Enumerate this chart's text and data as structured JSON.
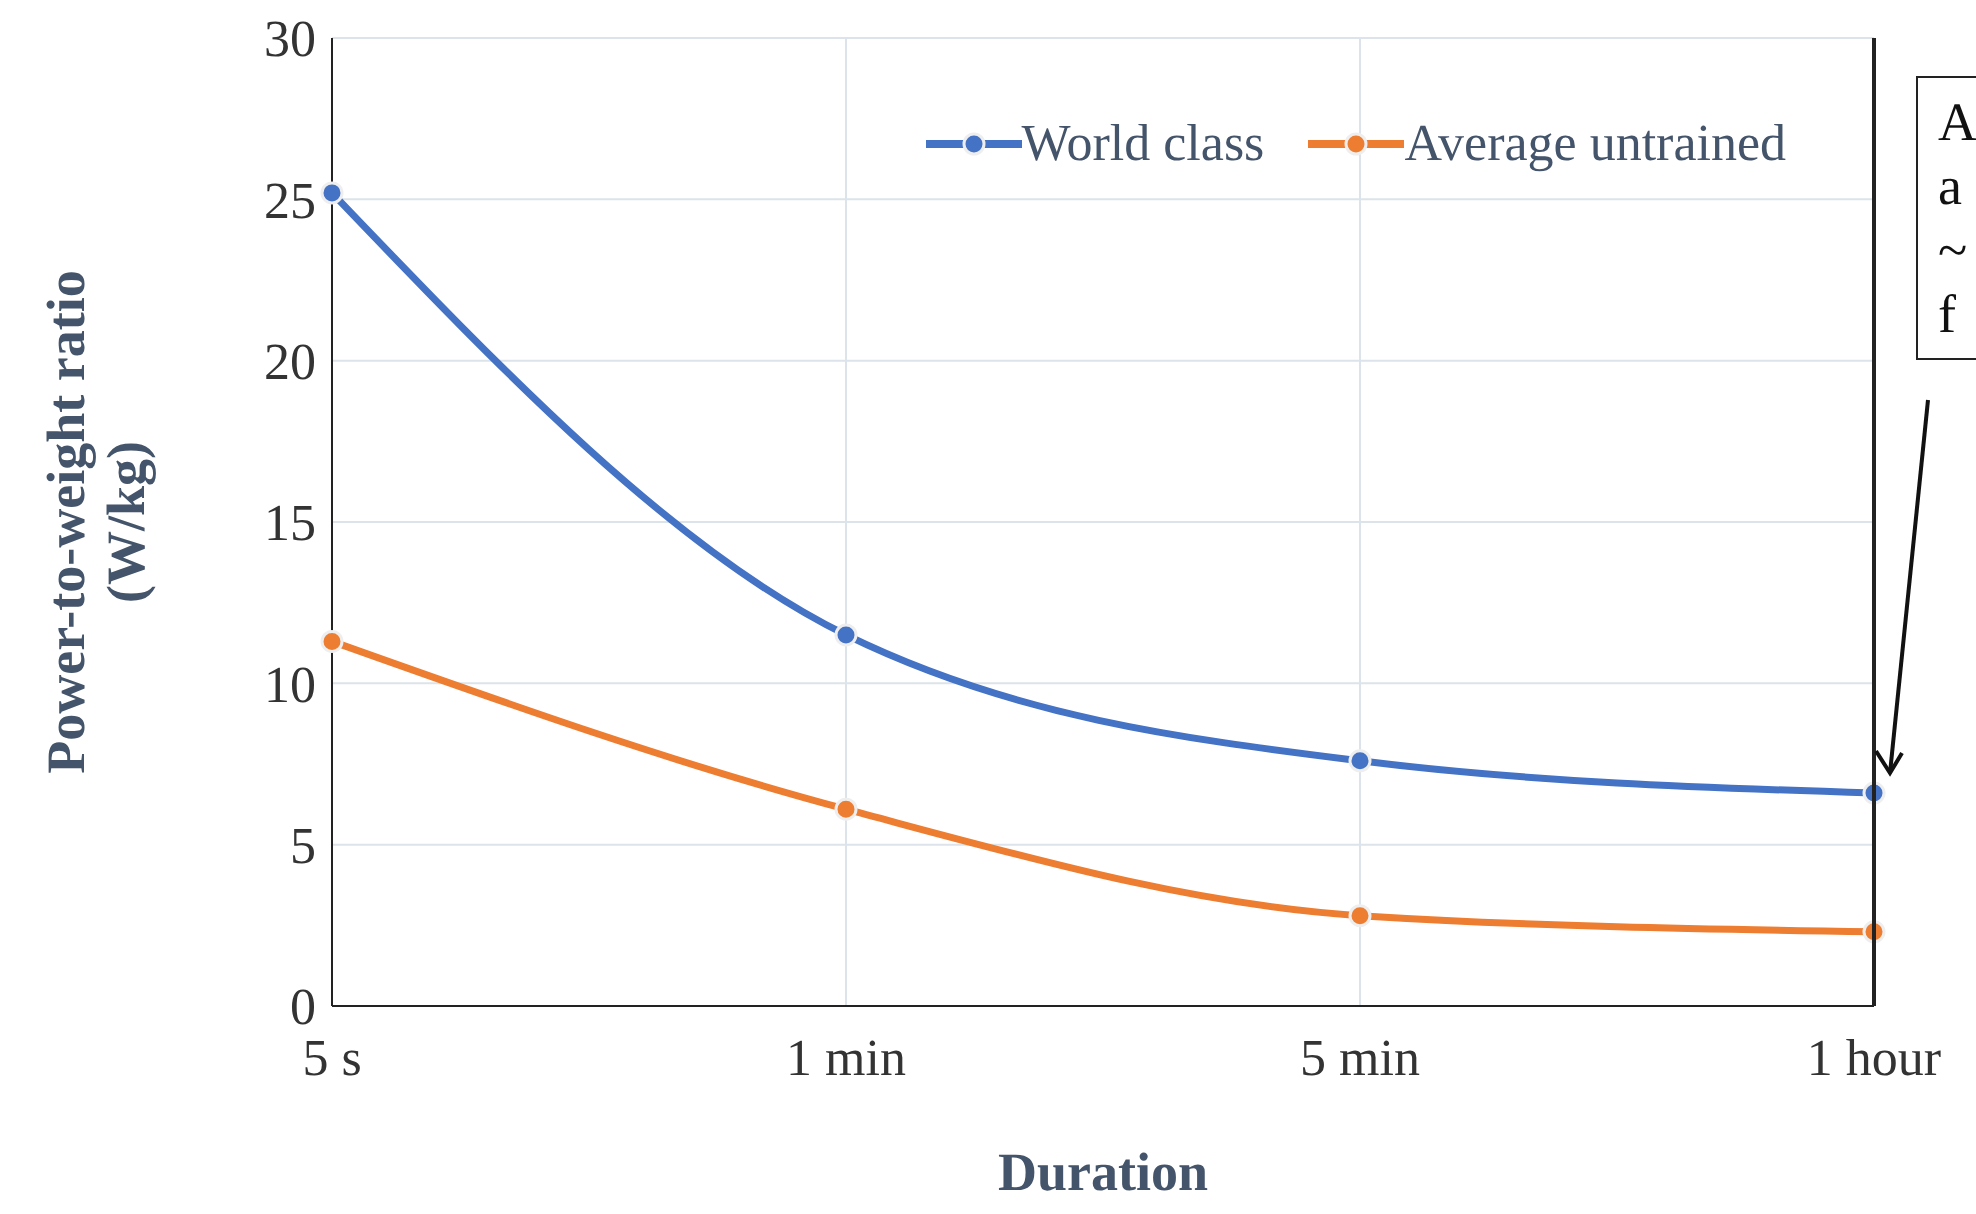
{
  "chart_data": {
    "type": "line",
    "xlabel": "Duration",
    "ylabel": "Power-to-weight ratio\n(W/kg)",
    "categories": [
      "5 s",
      "1 min",
      "5 min",
      "1 hour"
    ],
    "series": [
      {
        "name": "World class",
        "color": "#4472c4",
        "values": [
          25.2,
          11.5,
          7.6,
          6.6
        ]
      },
      {
        "name": "Average untrained",
        "color": "#ed7d31",
        "values": [
          11.3,
          6.1,
          2.8,
          2.3
        ]
      }
    ],
    "ylim": [
      0,
      30
    ],
    "yticks": [
      0,
      5,
      10,
      15,
      20,
      25,
      30
    ],
    "grid": true,
    "legend": "top right",
    "marker": "circle",
    "line_style": "solid",
    "annotations": [
      "A\na\n~\nf"
    ]
  }
}
